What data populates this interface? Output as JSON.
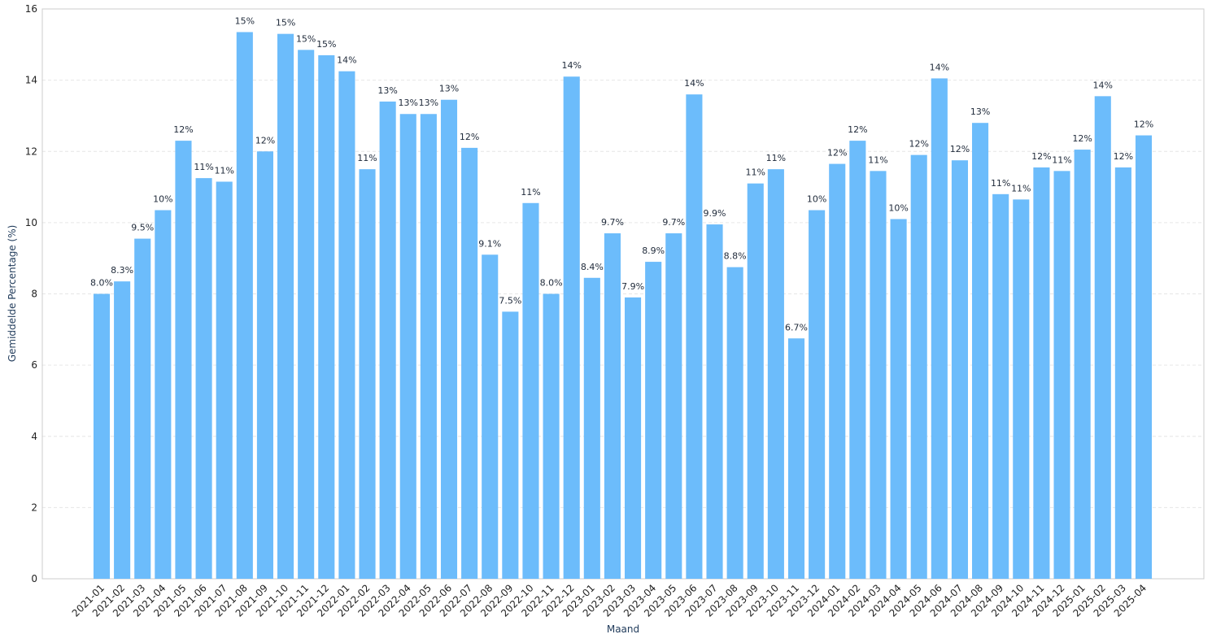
{
  "chart_data": {
    "type": "bar",
    "title": "",
    "xlabel": "Maand",
    "ylabel": "Gemiddelde Percentage (%)",
    "ylim": [
      0,
      16
    ],
    "yticks": [
      0,
      2,
      4,
      6,
      8,
      10,
      12,
      14,
      16
    ],
    "grid": true,
    "bar_color": "#6cbcfb",
    "categories": [
      "2021-01",
      "2021-02",
      "2021-03",
      "2021-04",
      "2021-05",
      "2021-06",
      "2021-07",
      "2021-08",
      "2021-09",
      "2021-10",
      "2021-11",
      "2021-12",
      "2022-01",
      "2022-02",
      "2022-03",
      "2022-04",
      "2022-05",
      "2022-06",
      "2022-07",
      "2022-08",
      "2022-09",
      "2022-10",
      "2022-11",
      "2022-12",
      "2023-01",
      "2023-02",
      "2023-03",
      "2023-04",
      "2023-05",
      "2023-06",
      "2023-07",
      "2023-08",
      "2023-09",
      "2023-10",
      "2023-11",
      "2023-12",
      "2024-01",
      "2024-02",
      "2024-03",
      "2024-04",
      "2024-05",
      "2024-06",
      "2024-07",
      "2024-08",
      "2024-09",
      "2024-10",
      "2024-11",
      "2024-12",
      "2025-01",
      "2025-02",
      "2025-03",
      "2025-04"
    ],
    "values": [
      8.0,
      8.35,
      9.55,
      10.35,
      12.3,
      11.25,
      11.15,
      15.35,
      12.0,
      15.3,
      14.85,
      14.7,
      14.25,
      11.5,
      13.4,
      13.05,
      13.05,
      13.45,
      12.1,
      9.1,
      7.5,
      10.55,
      8.0,
      14.1,
      8.45,
      9.7,
      7.9,
      8.9,
      9.7,
      13.6,
      9.95,
      8.75,
      11.1,
      11.5,
      6.75,
      10.35,
      11.65,
      12.3,
      11.45,
      10.1,
      11.9,
      14.05,
      11.75,
      12.8,
      10.8,
      10.65,
      11.55,
      11.45,
      12.05,
      13.55,
      11.55,
      12.45
    ],
    "data_labels": [
      "8.0%",
      "8.3%",
      "9.5%",
      "10%",
      "12%",
      "11%",
      "11%",
      "15%",
      "12%",
      "15%",
      "15%",
      "15%",
      "14%",
      "11%",
      "13%",
      "13%",
      "13%",
      "13%",
      "12%",
      "9.1%",
      "7.5%",
      "11%",
      "8.0%",
      "14%",
      "8.4%",
      "9.7%",
      "7.9%",
      "8.9%",
      "9.7%",
      "14%",
      "9.9%",
      "8.8%",
      "11%",
      "11%",
      "6.7%",
      "10%",
      "12%",
      "12%",
      "11%",
      "10%",
      "12%",
      "14%",
      "12%",
      "13%",
      "11%",
      "11%",
      "12%",
      "11%",
      "12%",
      "14%",
      "12%",
      "12%"
    ]
  }
}
